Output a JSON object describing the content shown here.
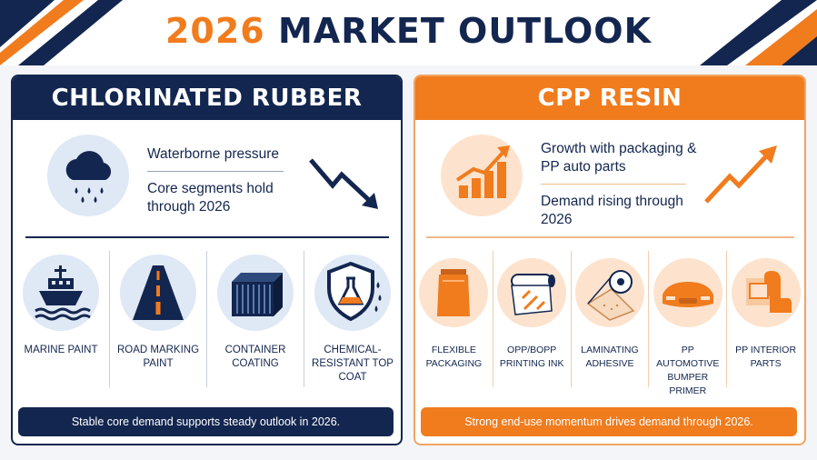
{
  "header": {
    "title_year": "2026",
    "title_rest": " MARKET OUTLOOK"
  },
  "colors": {
    "navy": "#13264f",
    "orange": "#f07c1e",
    "light_blue": "#dfe8f5",
    "light_orange": "#fde3cd"
  },
  "left_panel": {
    "title": "CHLORINATED RUBBER",
    "main_icon": "rain-cloud-icon",
    "line1": "Waterborne pressure",
    "line2": "Core segments hold through 2026",
    "trend_icon": "down-trend-arrow-icon",
    "items": [
      {
        "label": "MARINE PAINT",
        "icon": "ship-icon"
      },
      {
        "label": "ROAD MARKING PAINT",
        "icon": "road-icon"
      },
      {
        "label": "CONTAINER COATING",
        "icon": "container-icon"
      },
      {
        "label": "CHEMICAL-RESISTANT TOP COAT",
        "icon": "shield-flask-icon"
      }
    ],
    "footer": "Stable core demand supports steady outlook in 2026."
  },
  "right_panel": {
    "title": "CPP RESIN",
    "main_icon": "rising-bar-chart-icon",
    "line1": "Growth with packaging & PP auto parts",
    "line2": "Demand rising through 2026",
    "trend_icon": "up-trend-arrow-icon",
    "items": [
      {
        "label": "FLEXIBLE PACKAGING",
        "icon": "pouch-icon"
      },
      {
        "label": "OPP/BOPP PRINTING INK",
        "icon": "film-roll-icon"
      },
      {
        "label": "LAMINATING ADHESIVE",
        "icon": "laminate-roll-icon"
      },
      {
        "label": "PP AUTOMOTIVE BUMPER PRIMER",
        "icon": "car-bumper-icon"
      },
      {
        "label": "PP INTERIOR PARTS",
        "icon": "car-seat-icon"
      }
    ],
    "footer": "Strong end-use momentum drives demand through 2026."
  }
}
